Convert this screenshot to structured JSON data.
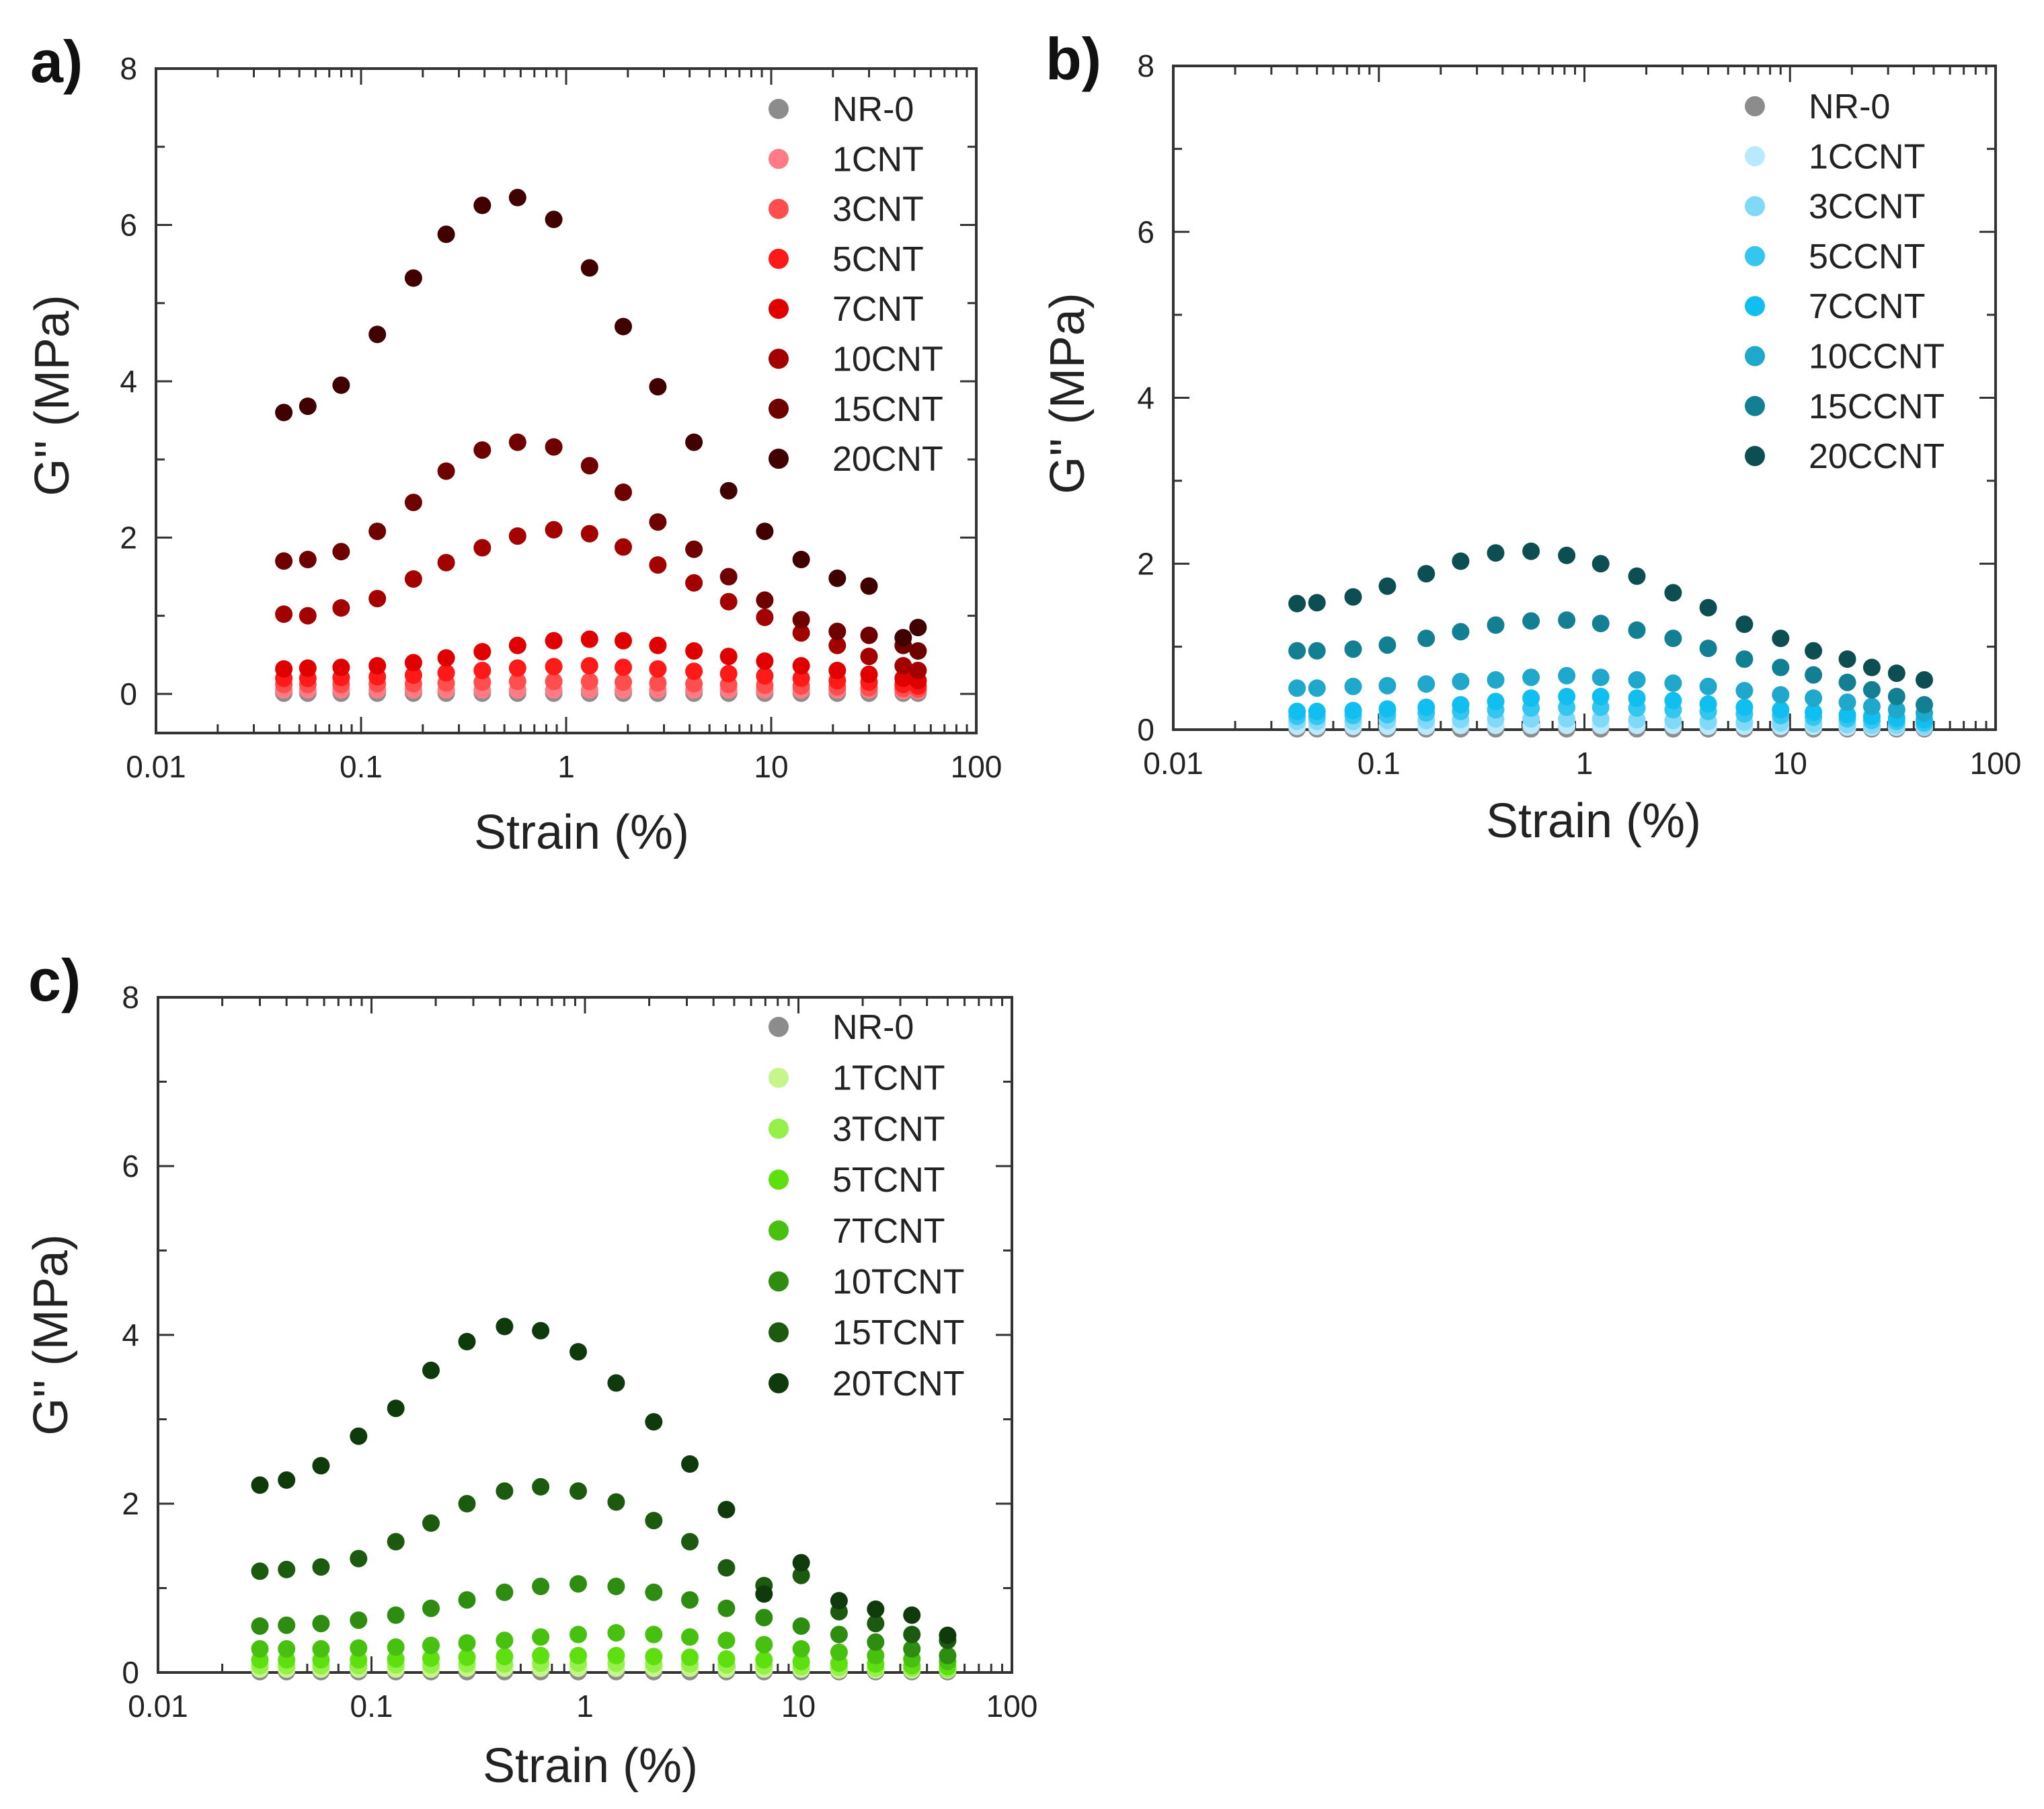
{
  "chart_data": [
    {
      "type": "scatter",
      "panel": "a)",
      "xlabel": "Strain (%)",
      "ylabel": "G'' (MPa)",
      "xscale": "log",
      "xlim": [
        0.01,
        100
      ],
      "ylim": [
        -0.5,
        8
      ],
      "xtick_labels": [
        "0.01",
        "0.1",
        "1",
        "10",
        "100"
      ],
      "ytick_labels": [
        "0",
        "2",
        "4",
        "6",
        "8"
      ],
      "legend_position": "top-right",
      "x": [
        0.042,
        0.055,
        0.08,
        0.12,
        0.18,
        0.26,
        0.39,
        0.58,
        0.87,
        1.3,
        1.9,
        2.8,
        4.2,
        6.2,
        9.3,
        14,
        21,
        30,
        44,
        52
      ],
      "series": [
        {
          "name": "NR-0",
          "color": "#8c8c8c",
          "values": [
            0.01,
            0.01,
            0.01,
            0.01,
            0.01,
            0.01,
            0.01,
            0.01,
            0.01,
            0.01,
            0.01,
            0.01,
            0.01,
            0.01,
            0.01,
            0.01,
            0.01,
            0.01,
            0.01,
            0.01
          ]
        },
        {
          "name": "1CNT",
          "color": "#ff7b86",
          "values": [
            0.05,
            0.05,
            0.05,
            0.05,
            0.05,
            0.05,
            0.05,
            0.05,
            0.05,
            0.05,
            0.05,
            0.05,
            0.05,
            0.05,
            0.05,
            0.05,
            0.05,
            0.05,
            0.04,
            0.04
          ]
        },
        {
          "name": "3CNT",
          "color": "#ff4e4e",
          "values": [
            0.12,
            0.12,
            0.12,
            0.13,
            0.13,
            0.14,
            0.15,
            0.16,
            0.16,
            0.16,
            0.15,
            0.14,
            0.13,
            0.12,
            0.11,
            0.1,
            0.09,
            0.08,
            0.07,
            0.06
          ]
        },
        {
          "name": "5CNT",
          "color": "#ff1a1a",
          "values": [
            0.2,
            0.2,
            0.21,
            0.22,
            0.24,
            0.27,
            0.3,
            0.33,
            0.35,
            0.36,
            0.34,
            0.32,
            0.29,
            0.26,
            0.23,
            0.2,
            0.17,
            0.15,
            0.12,
            0.1
          ]
        },
        {
          "name": "7CNT",
          "color": "#e00000",
          "values": [
            0.32,
            0.33,
            0.34,
            0.36,
            0.4,
            0.46,
            0.54,
            0.62,
            0.68,
            0.7,
            0.68,
            0.62,
            0.55,
            0.48,
            0.42,
            0.36,
            0.3,
            0.25,
            0.2,
            0.17
          ]
        },
        {
          "name": "10CNT",
          "color": "#a30000",
          "values": [
            1.02,
            1.0,
            1.1,
            1.22,
            1.47,
            1.68,
            1.87,
            2.02,
            2.1,
            2.05,
            1.88,
            1.65,
            1.42,
            1.18,
            0.98,
            0.78,
            0.62,
            0.48,
            0.36,
            0.3
          ]
        },
        {
          "name": "15CNT",
          "color": "#6e0000",
          "values": [
            1.7,
            1.72,
            1.82,
            2.08,
            2.45,
            2.85,
            3.12,
            3.22,
            3.16,
            2.92,
            2.58,
            2.2,
            1.85,
            1.5,
            1.2,
            0.95,
            0.8,
            0.75,
            0.62,
            0.55
          ]
        },
        {
          "name": "20CNT",
          "color": "#400000",
          "values": [
            3.6,
            3.68,
            3.95,
            4.6,
            5.32,
            5.88,
            6.25,
            6.35,
            6.07,
            5.45,
            4.7,
            3.93,
            3.22,
            2.6,
            2.08,
            1.72,
            1.48,
            1.38,
            0.72,
            0.85
          ]
        }
      ]
    },
    {
      "type": "scatter",
      "panel": "b)",
      "xlabel": "Strain (%)",
      "ylabel": "G'' (MPa)",
      "xscale": "log",
      "xlim": [
        0.01,
        100
      ],
      "ylim": [
        0,
        8
      ],
      "xtick_labels": [
        "0.01",
        "0.1",
        "1",
        "10",
        "100"
      ],
      "ytick_labels": [
        "0",
        "2",
        "4",
        "6",
        "8"
      ],
      "legend_position": "top-right",
      "x": [
        0.04,
        0.05,
        0.075,
        0.11,
        0.17,
        0.25,
        0.37,
        0.55,
        0.82,
        1.2,
        1.8,
        2.7,
        4,
        6,
        9,
        13,
        19,
        25,
        33,
        45
      ],
      "series": [
        {
          "name": "NR-0",
          "color": "#8c8c8c",
          "values": [
            0.01,
            0.01,
            0.01,
            0.01,
            0.01,
            0.01,
            0.01,
            0.01,
            0.01,
            0.01,
            0.01,
            0.01,
            0.01,
            0.01,
            0.01,
            0.01,
            0.01,
            0.01,
            0.01,
            0.01
          ]
        },
        {
          "name": "1CCNT",
          "color": "#b9e9ff",
          "values": [
            0.04,
            0.04,
            0.04,
            0.04,
            0.04,
            0.05,
            0.05,
            0.05,
            0.05,
            0.05,
            0.05,
            0.05,
            0.04,
            0.04,
            0.04,
            0.04,
            0.03,
            0.03,
            0.03,
            0.03
          ]
        },
        {
          "name": "3CCNT",
          "color": "#7fd9f7",
          "values": [
            0.1,
            0.1,
            0.1,
            0.11,
            0.11,
            0.12,
            0.13,
            0.13,
            0.13,
            0.13,
            0.12,
            0.11,
            0.1,
            0.09,
            0.08,
            0.07,
            0.06,
            0.05,
            0.05,
            0.04
          ]
        },
        {
          "name": "5CCNT",
          "color": "#35c6f0",
          "values": [
            0.16,
            0.16,
            0.17,
            0.18,
            0.2,
            0.22,
            0.24,
            0.26,
            0.27,
            0.27,
            0.26,
            0.24,
            0.22,
            0.19,
            0.17,
            0.15,
            0.13,
            0.11,
            0.1,
            0.08
          ]
        },
        {
          "name": "7CCNT",
          "color": "#10bff0",
          "values": [
            0.22,
            0.22,
            0.23,
            0.25,
            0.27,
            0.3,
            0.34,
            0.38,
            0.4,
            0.4,
            0.38,
            0.35,
            0.31,
            0.27,
            0.24,
            0.21,
            0.18,
            0.16,
            0.14,
            0.12
          ]
        },
        {
          "name": "10CCNT",
          "color": "#1fa7cc",
          "values": [
            0.5,
            0.5,
            0.52,
            0.53,
            0.55,
            0.58,
            0.6,
            0.63,
            0.65,
            0.63,
            0.6,
            0.56,
            0.52,
            0.47,
            0.42,
            0.38,
            0.33,
            0.28,
            0.24,
            0.2
          ]
        },
        {
          "name": "15CCNT",
          "color": "#137f92",
          "values": [
            0.95,
            0.95,
            0.97,
            1.02,
            1.1,
            1.18,
            1.26,
            1.31,
            1.32,
            1.28,
            1.2,
            1.1,
            0.98,
            0.85,
            0.75,
            0.66,
            0.57,
            0.48,
            0.4,
            0.3
          ]
        },
        {
          "name": "20CCNT",
          "color": "#0c4e52",
          "values": [
            1.52,
            1.53,
            1.6,
            1.73,
            1.88,
            2.03,
            2.13,
            2.15,
            2.1,
            2.0,
            1.85,
            1.65,
            1.47,
            1.27,
            1.1,
            0.95,
            0.85,
            0.75,
            0.68,
            0.6
          ]
        }
      ]
    },
    {
      "type": "scatter",
      "panel": "c)",
      "xlabel": "Strain (%)",
      "ylabel": "G'' (MPa)",
      "xscale": "log",
      "xlim": [
        0.01,
        100
      ],
      "ylim": [
        0,
        8
      ],
      "xtick_labels": [
        "0.01",
        "0.1",
        "1",
        "10",
        "100"
      ],
      "ytick_labels": [
        "0",
        "2",
        "4",
        "6",
        "8"
      ],
      "legend_position": "top-right",
      "x": [
        0.03,
        0.04,
        0.058,
        0.087,
        0.13,
        0.19,
        0.28,
        0.42,
        0.62,
        0.93,
        1.4,
        2.1,
        3.1,
        4.6,
        6.9,
        10.3,
        15.5,
        23,
        34,
        50
      ],
      "series": [
        {
          "name": "NR-0",
          "color": "#8c8c8c",
          "values": [
            0.01,
            0.01,
            0.01,
            0.01,
            0.01,
            0.01,
            0.01,
            0.01,
            0.01,
            0.01,
            0.01,
            0.01,
            0.01,
            0.01,
            0.01,
            0.01,
            0.01,
            0.01,
            0.01,
            0.01
          ]
        },
        {
          "name": "1TCNT",
          "color": "#c6f58a",
          "values": [
            0.04,
            0.04,
            0.04,
            0.04,
            0.04,
            0.04,
            0.05,
            0.05,
            0.05,
            0.05,
            0.05,
            0.05,
            0.05,
            0.04,
            0.04,
            0.04,
            0.03,
            0.03,
            0.03,
            0.03
          ]
        },
        {
          "name": "3TCNT",
          "color": "#95f04a",
          "values": [
            0.08,
            0.08,
            0.08,
            0.08,
            0.09,
            0.09,
            0.1,
            0.1,
            0.11,
            0.11,
            0.11,
            0.1,
            0.1,
            0.09,
            0.08,
            0.07,
            0.06,
            0.05,
            0.05,
            0.04
          ]
        },
        {
          "name": "5TCNT",
          "color": "#5ee010",
          "values": [
            0.15,
            0.15,
            0.15,
            0.15,
            0.16,
            0.17,
            0.18,
            0.19,
            0.2,
            0.2,
            0.2,
            0.19,
            0.18,
            0.16,
            0.15,
            0.13,
            0.11,
            0.1,
            0.08,
            0.07
          ]
        },
        {
          "name": "7TCNT",
          "color": "#48c010",
          "values": [
            0.28,
            0.28,
            0.28,
            0.29,
            0.3,
            0.32,
            0.35,
            0.38,
            0.42,
            0.45,
            0.47,
            0.45,
            0.42,
            0.38,
            0.33,
            0.28,
            0.24,
            0.2,
            0.16,
            0.13
          ]
        },
        {
          "name": "10TCNT",
          "color": "#2e8c10",
          "values": [
            0.55,
            0.56,
            0.58,
            0.62,
            0.68,
            0.76,
            0.86,
            0.95,
            1.02,
            1.05,
            1.02,
            0.95,
            0.86,
            0.76,
            0.65,
            0.55,
            0.45,
            0.36,
            0.28,
            0.2
          ]
        },
        {
          "name": "15TCNT",
          "color": "#1c5a10",
          "values": [
            1.2,
            1.22,
            1.25,
            1.35,
            1.55,
            1.77,
            2.0,
            2.15,
            2.2,
            2.15,
            2.02,
            1.8,
            1.55,
            1.24,
            1.03,
            1.15,
            0.72,
            0.58,
            0.45,
            0.38
          ]
        },
        {
          "name": "20TCNT",
          "color": "#0f3b0c",
          "values": [
            2.22,
            2.28,
            2.45,
            2.8,
            3.13,
            3.58,
            3.92,
            4.1,
            4.05,
            3.8,
            3.43,
            2.97,
            2.47,
            1.93,
            0.93,
            1.3,
            0.85,
            0.75,
            0.68,
            0.44
          ]
        }
      ]
    }
  ]
}
